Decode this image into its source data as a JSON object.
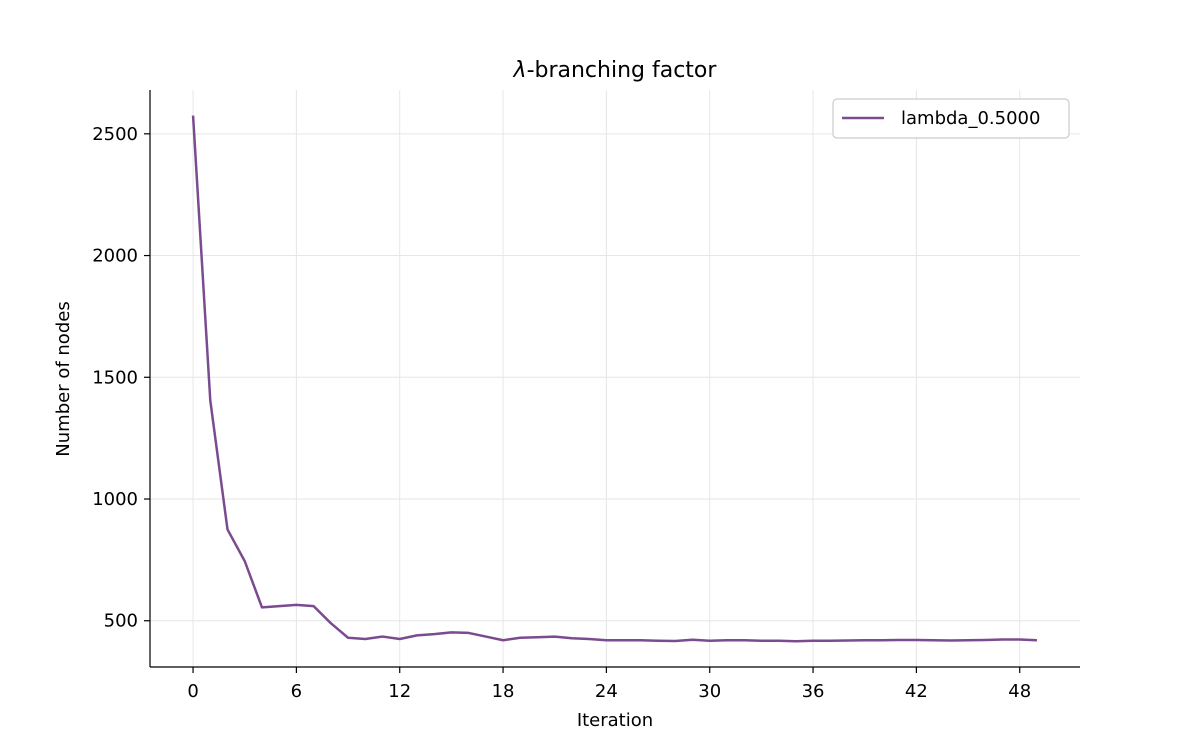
{
  "chart_data": {
    "type": "line",
    "title_symbol": "λ",
    "title_rest": "-branching factor",
    "xlabel": "Iteration",
    "ylabel": "Number of nodes",
    "xlim": [
      -2.5,
      51.5
    ],
    "ylim": [
      310,
      2680
    ],
    "xticks": [
      0,
      6,
      12,
      18,
      24,
      30,
      36,
      42,
      48
    ],
    "yticks": [
      500,
      1000,
      1500,
      2000,
      2500
    ],
    "grid": true,
    "legend_position": "top-right",
    "series": [
      {
        "name": "lambda_0.5000",
        "color": "#7b4b8f",
        "x": [
          0,
          1,
          2,
          3,
          4,
          5,
          6,
          7,
          8,
          9,
          10,
          11,
          12,
          13,
          14,
          15,
          16,
          17,
          18,
          19,
          20,
          21,
          22,
          23,
          24,
          25,
          26,
          27,
          28,
          29,
          30,
          31,
          32,
          33,
          34,
          35,
          36,
          37,
          38,
          39,
          40,
          41,
          42,
          43,
          44,
          45,
          46,
          47,
          48,
          49
        ],
        "y": [
          2575,
          1405,
          875,
          745,
          555,
          560,
          565,
          560,
          490,
          430,
          425,
          435,
          425,
          440,
          445,
          452,
          450,
          435,
          420,
          430,
          432,
          435,
          428,
          425,
          420,
          420,
          420,
          418,
          417,
          422,
          418,
          420,
          420,
          418,
          418,
          416,
          418,
          418,
          419,
          420,
          420,
          421,
          421,
          420,
          419,
          420,
          421,
          423,
          423,
          420
        ]
      }
    ]
  }
}
